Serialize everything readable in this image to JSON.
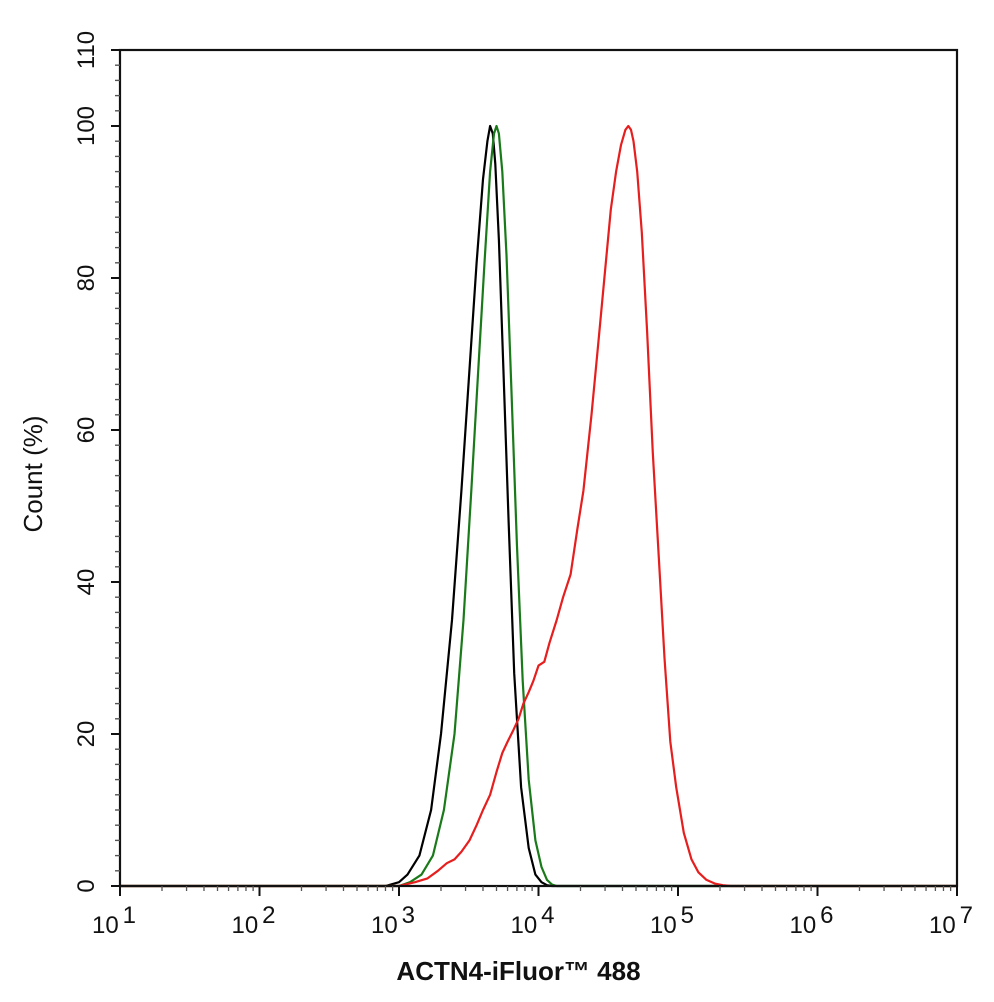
{
  "chart_data": {
    "type": "line",
    "xlabel": "ACTN4-iFluor™ 488",
    "ylabel": "Count  (%)",
    "x_scale": "log",
    "xlim": [
      10,
      10000000
    ],
    "ylim": [
      0,
      110
    ],
    "x_tick_labels": [
      {
        "value": 10,
        "base": "10",
        "exp": "1"
      },
      {
        "value": 100,
        "base": "10",
        "exp": "2"
      },
      {
        "value": 1000,
        "base": "10",
        "exp": "3"
      },
      {
        "value": 10000,
        "base": "10",
        "exp": "4"
      },
      {
        "value": 100000,
        "base": "10",
        "exp": "5"
      },
      {
        "value": 1000000,
        "base": "10",
        "exp": "6"
      },
      {
        "value": 10000000,
        "base": "10",
        "exp": "7"
      }
    ],
    "y_ticks": [
      0,
      20,
      40,
      60,
      80,
      100,
      110
    ],
    "grid": false,
    "series": [
      {
        "color": "#000000",
        "x": [
          10,
          800,
          1000,
          1150,
          1400,
          1700,
          2000,
          2400,
          2800,
          3200,
          3600,
          4000,
          4300,
          4500,
          4700,
          4900,
          5200,
          5600,
          6100,
          6700,
          7500,
          8500,
          9500,
          10500,
          11500,
          12500,
          10000000
        ],
        "y": [
          0,
          0,
          0.5,
          1.5,
          4,
          10,
          20,
          35,
          52,
          68,
          82,
          93,
          98,
          100,
          99,
          95,
          85,
          68,
          48,
          28,
          13,
          5,
          1.5,
          0.5,
          0.1,
          0,
          0
        ]
      },
      {
        "color": "#1a7a1a",
        "x": [
          10,
          1000,
          1200,
          1450,
          1750,
          2100,
          2500,
          2900,
          3300,
          3700,
          4100,
          4500,
          4800,
          5000,
          5200,
          5500,
          5900,
          6400,
          7000,
          7700,
          8500,
          9500,
          10500,
          11500,
          12500,
          13500,
          10000000
        ],
        "y": [
          0,
          0,
          0.5,
          1.5,
          4,
          10,
          20,
          35,
          52,
          68,
          82,
          94,
          99,
          100,
          99,
          94,
          83,
          65,
          45,
          27,
          14,
          6,
          2.5,
          0.8,
          0.2,
          0,
          0
        ]
      },
      {
        "color": "#e61e1e",
        "x": [
          10,
          1000,
          1300,
          1600,
          1900,
          2200,
          2500,
          2800,
          3200,
          3600,
          4000,
          4500,
          5000,
          5500,
          6000,
          6600,
          7200,
          7800,
          8500,
          9200,
          10000,
          11000,
          12000,
          13500,
          15000,
          17000,
          19000,
          21000,
          24000,
          27000,
          30000,
          33000,
          36000,
          39000,
          42000,
          44000,
          46000,
          48000,
          51000,
          55000,
          60000,
          66000,
          73000,
          80000,
          88000,
          97000,
          110000,
          125000,
          140000,
          160000,
          185000,
          210000,
          240000,
          280000,
          330000,
          10000000
        ],
        "y": [
          0,
          0,
          0.5,
          1,
          2,
          3,
          3.5,
          4.5,
          6,
          8,
          10,
          12,
          15,
          17.5,
          19,
          20.5,
          22,
          24,
          25.5,
          27,
          29,
          29.5,
          32,
          35,
          38,
          41,
          47,
          52,
          62,
          72,
          81,
          89,
          94,
          97.5,
          99.5,
          100,
          99.5,
          98,
          94,
          86,
          73,
          57,
          43,
          30,
          19,
          13,
          7,
          3.5,
          1.8,
          0.8,
          0.3,
          0.1,
          0,
          0,
          0,
          0
        ]
      }
    ]
  }
}
